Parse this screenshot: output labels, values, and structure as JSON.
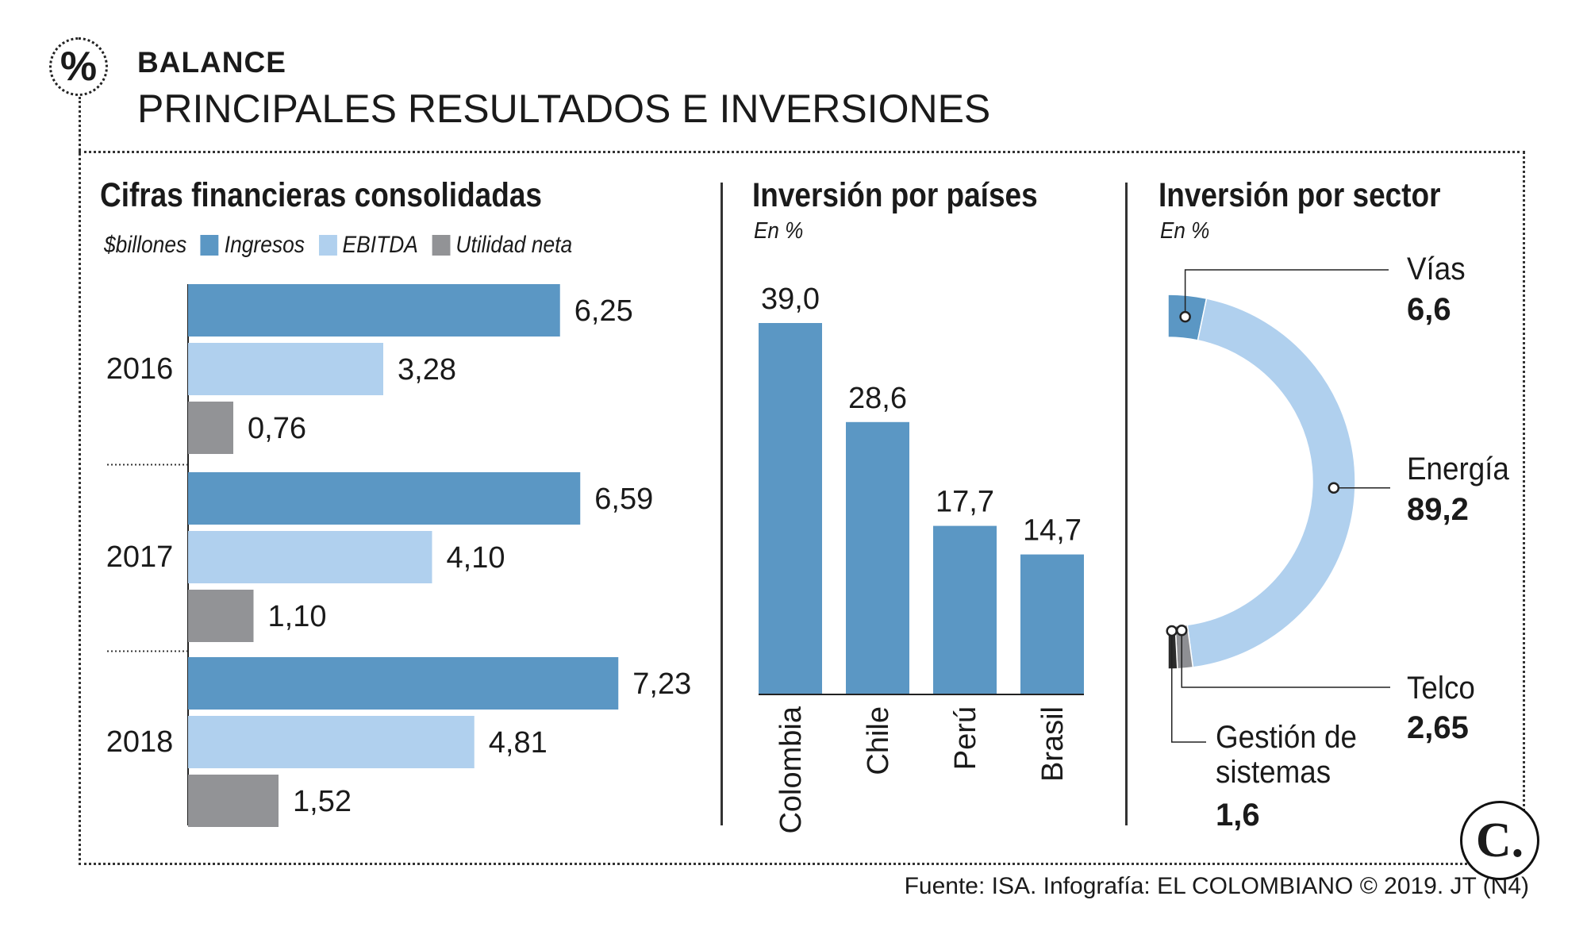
{
  "header": {
    "badge_symbol": "%",
    "kicker": "BALANCE",
    "title": "PRINCIPALES RESULTADOS E INVERSIONES"
  },
  "panels": {
    "financial": {
      "title": "Cifras financieras consolidadas",
      "unit": "$billones",
      "legend": [
        "Ingresos",
        "EBITDA",
        "Utilidad neta"
      ]
    },
    "countries": {
      "title": "Inversión por países",
      "subtitle": "En %"
    },
    "sector": {
      "title": "Inversión por sector",
      "subtitle": "En %"
    }
  },
  "colors": {
    "ingresos": "#5b97c4",
    "ebitda": "#b0d0ee",
    "utilidad": "#929396",
    "telco": "#8e8f93",
    "gestion": "#2b2b2b"
  },
  "chart_data": [
    {
      "type": "bar",
      "orientation": "horizontal",
      "title": "Cifras financieras consolidadas",
      "ylabel": "$billones",
      "categories": [
        "2016",
        "2017",
        "2018"
      ],
      "series": [
        {
          "name": "Ingresos",
          "values": [
            6.25,
            6.59,
            7.23
          ],
          "labels": [
            "6,25",
            "6,59",
            "7,23"
          ]
        },
        {
          "name": "EBITDA",
          "values": [
            3.28,
            4.1,
            4.81
          ],
          "labels": [
            "3,28",
            "4,10",
            "4,81"
          ]
        },
        {
          "name": "Utilidad neta",
          "values": [
            0.76,
            1.1,
            1.52
          ],
          "labels": [
            "0,76",
            "1,10",
            "1,52"
          ]
        }
      ]
    },
    {
      "type": "bar",
      "title": "Inversión por países",
      "ylabel": "En %",
      "categories": [
        "Colombia",
        "Chile",
        "Perú",
        "Brasil"
      ],
      "values": [
        39.0,
        28.6,
        17.7,
        14.7
      ],
      "labels": [
        "39,0",
        "28,6",
        "17,7",
        "14,7"
      ]
    },
    {
      "type": "pie",
      "variant": "half-donut",
      "title": "Inversión por sector",
      "ylabel": "En %",
      "slices": [
        {
          "name": "Vías",
          "value": 6.6,
          "label": "6,6"
        },
        {
          "name": "Energía",
          "value": 89.2,
          "label": "89,2"
        },
        {
          "name": "Telco",
          "value": 2.65,
          "label": "2,65"
        },
        {
          "name": "Gestión de sistemas",
          "value": 1.6,
          "label": "1,6"
        }
      ]
    }
  ],
  "footer": {
    "source": "Fuente: ISA. Infografía: EL COLOMBIANO © 2019. JT (N4)",
    "logo": "C."
  }
}
